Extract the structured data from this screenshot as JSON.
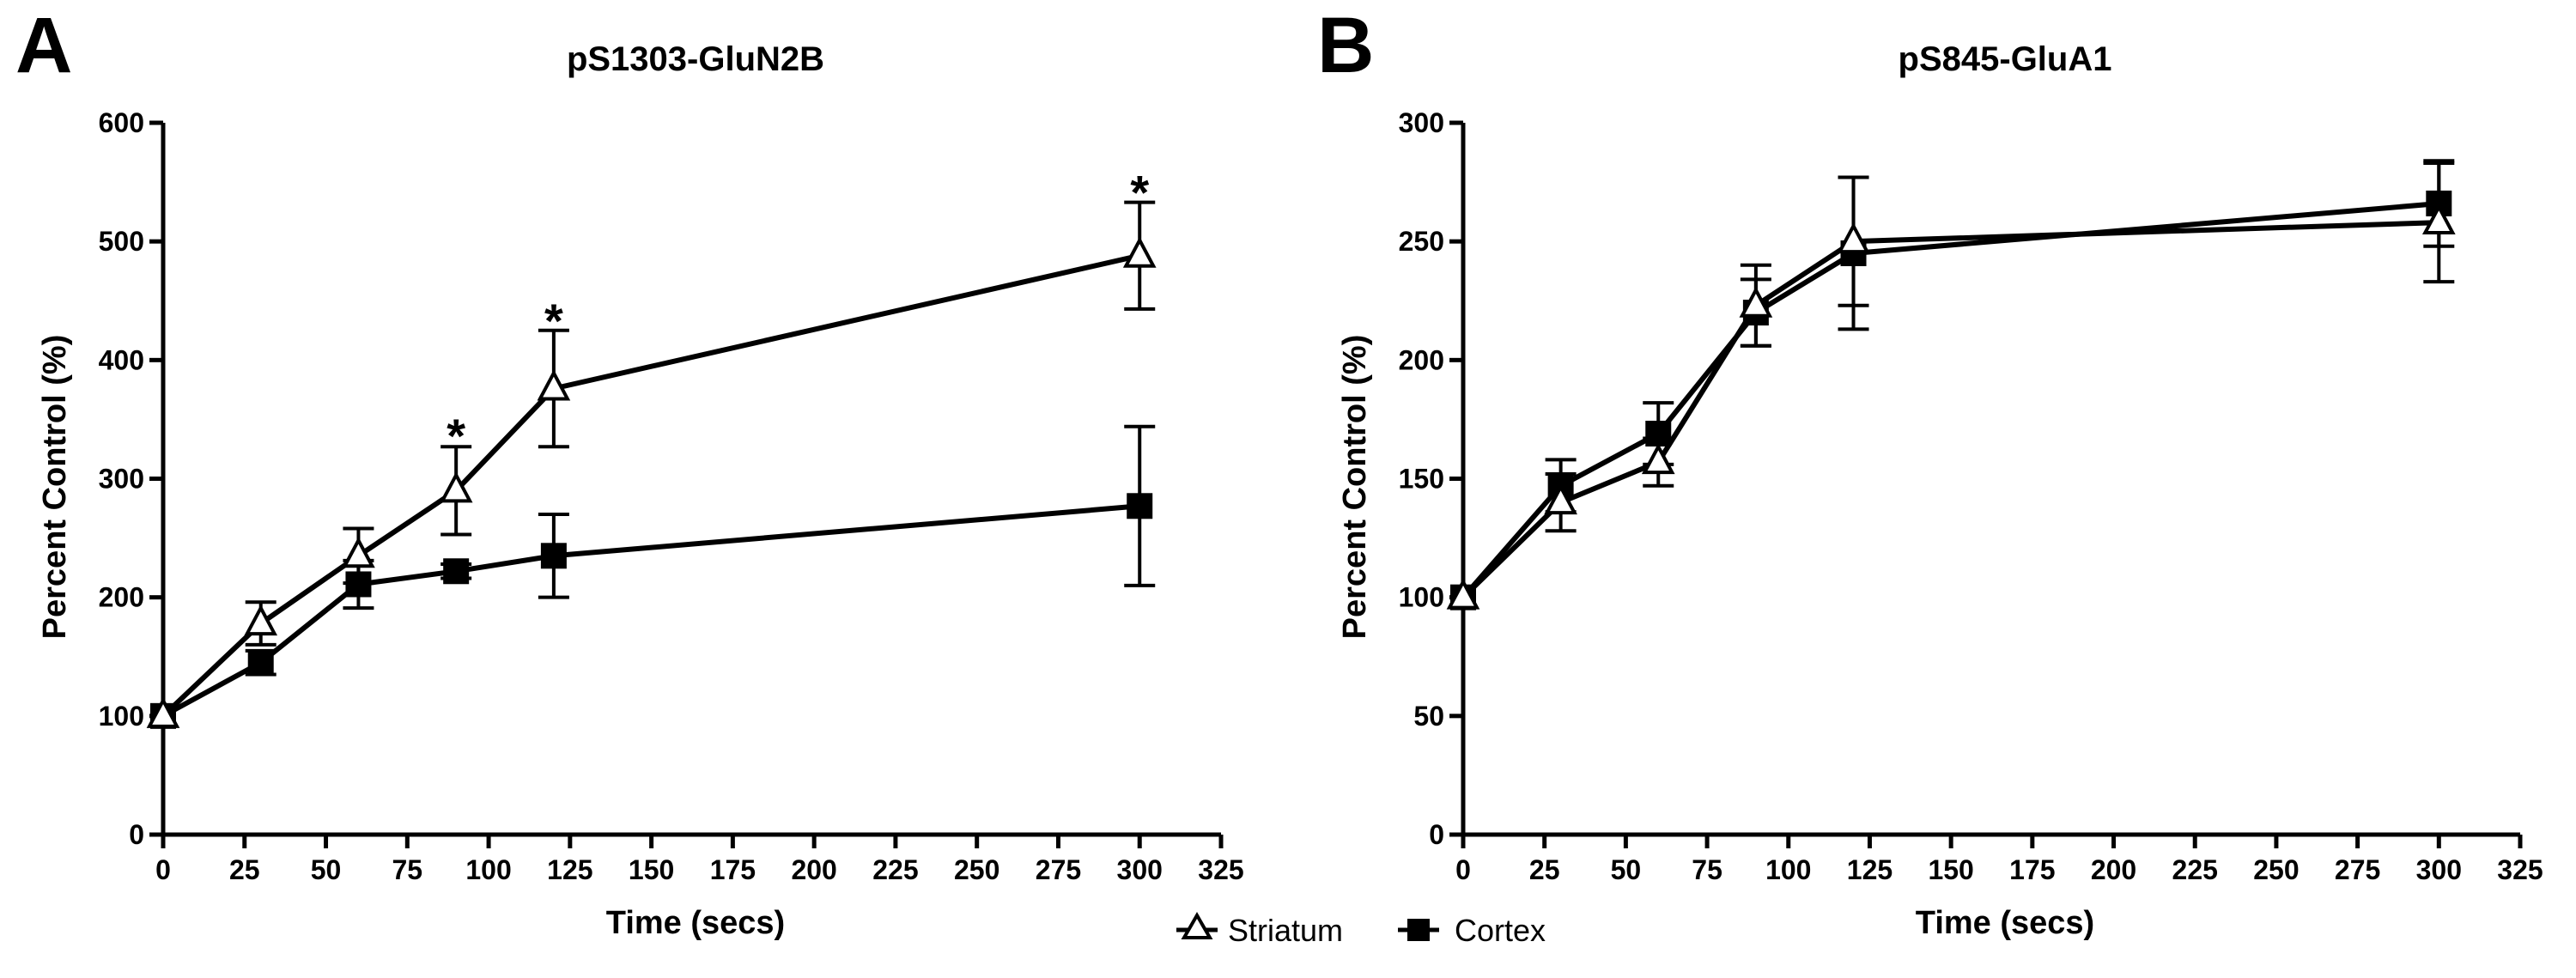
{
  "legend": [
    {
      "name": "Striatum",
      "marker": "open-triangle"
    },
    {
      "name": "Cortex",
      "marker": "filled-square"
    }
  ],
  "colors": {
    "line": "#000000",
    "background": "#ffffff",
    "open_marker_fill": "#ffffff"
  },
  "chart_data": [
    {
      "type": "line",
      "panel_letter": "A",
      "title": "pS1303-GluN2B",
      "xlabel": "Time (secs)",
      "ylabel": "Percent Control (%)",
      "xlim": [
        0,
        325
      ],
      "ylim": [
        0,
        600
      ],
      "xticks": [
        0,
        25,
        50,
        75,
        100,
        125,
        150,
        175,
        200,
        225,
        250,
        275,
        300,
        325
      ],
      "yticks": [
        0,
        100,
        200,
        300,
        400,
        500,
        600
      ],
      "grid": false,
      "x": [
        0,
        30,
        60,
        90,
        120,
        300
      ],
      "series": [
        {
          "name": "Striatum",
          "marker": "open-triangle",
          "values": [
            100,
            178,
            235,
            290,
            376,
            488
          ],
          "errors": [
            0,
            18,
            23,
            37,
            49,
            45
          ]
        },
        {
          "name": "Cortex",
          "marker": "filled-square",
          "values": [
            100,
            145,
            211,
            222,
            235,
            277
          ],
          "errors": [
            0,
            10,
            20,
            6,
            35,
            67
          ]
        }
      ],
      "annotations": [
        {
          "text": "*",
          "x": 90,
          "y": 328
        },
        {
          "text": "*",
          "x": 120,
          "y": 425
        },
        {
          "text": "*",
          "x": 300,
          "y": 533
        }
      ]
    },
    {
      "type": "line",
      "panel_letter": "B",
      "title": "pS845-GluA1",
      "xlabel": "Time (secs)",
      "ylabel": "Percent Control (%)",
      "xlim": [
        0,
        325
      ],
      "ylim": [
        0,
        300
      ],
      "xticks": [
        0,
        25,
        50,
        75,
        100,
        125,
        150,
        175,
        200,
        225,
        250,
        275,
        300,
        325
      ],
      "yticks": [
        0,
        50,
        100,
        150,
        200,
        250,
        300
      ],
      "grid": false,
      "x": [
        0,
        30,
        60,
        90,
        120,
        300
      ],
      "series": [
        {
          "name": "Striatum",
          "marker": "open-triangle",
          "values": [
            100,
            140,
            157,
            223,
            250,
            258
          ],
          "errors": [
            0,
            12,
            10,
            17,
            27,
            25
          ]
        },
        {
          "name": "Cortex",
          "marker": "filled-square",
          "values": [
            100,
            147,
            169,
            220,
            245,
            266
          ],
          "errors": [
            0,
            11,
            13,
            14,
            32,
            18
          ]
        }
      ],
      "annotations": []
    }
  ]
}
